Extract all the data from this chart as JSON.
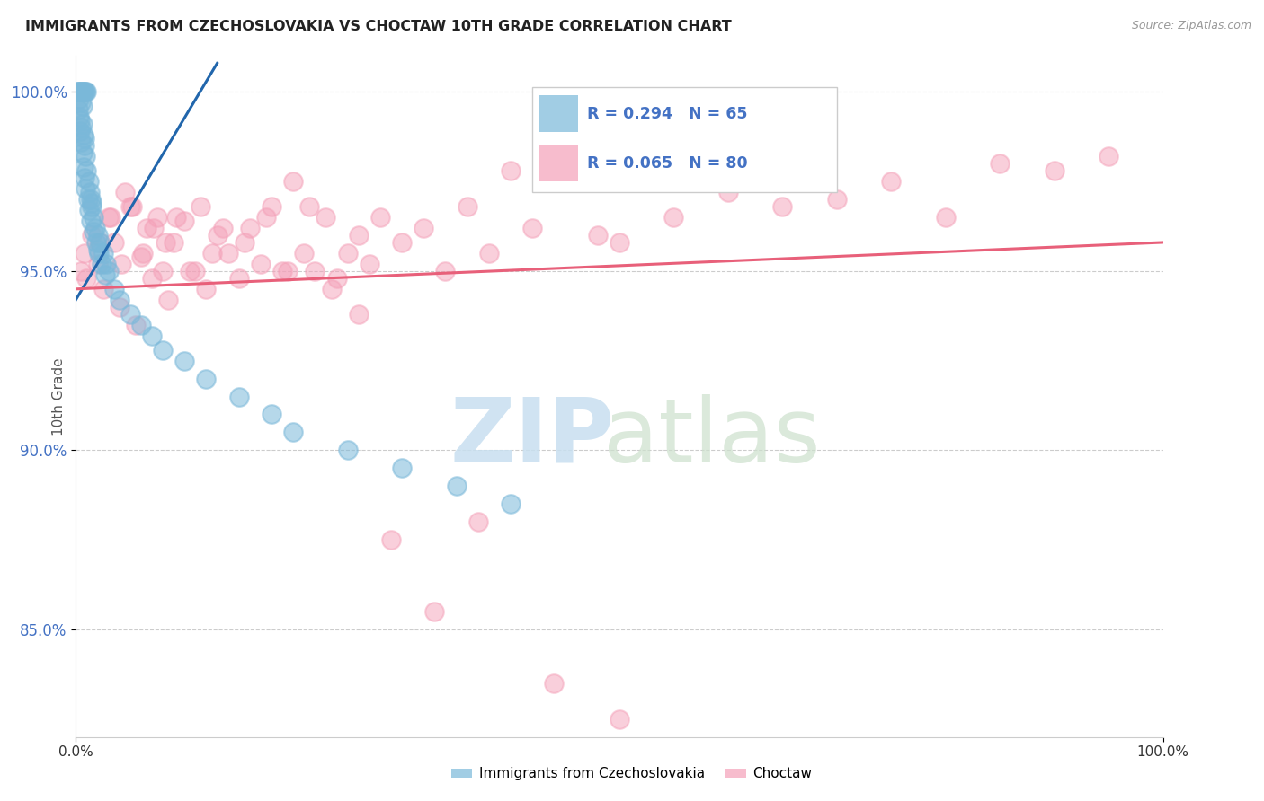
{
  "title": "IMMIGRANTS FROM CZECHOSLOVAKIA VS CHOCTAW 10TH GRADE CORRELATION CHART",
  "source": "Source: ZipAtlas.com",
  "blue_R": 0.294,
  "blue_N": 65,
  "pink_R": 0.065,
  "pink_N": 80,
  "blue_label": "Immigrants from Czechoslovakia",
  "pink_label": "Choctaw",
  "blue_color": "#7ab8d9",
  "pink_color": "#f4a0b8",
  "blue_line_color": "#2166ac",
  "pink_line_color": "#e8607a",
  "ylabel": "10th Grade",
  "xmin": 0,
  "xmax": 100,
  "ymin": 82,
  "ymax": 101,
  "yticks": [
    85.0,
    90.0,
    95.0,
    100.0
  ],
  "ytick_labels": [
    "85.0%",
    "90.0%",
    "95.0%",
    "100.0%"
  ],
  "watermark_zip": "ZIP",
  "watermark_atlas": "atlas",
  "blue_scatter_x": [
    0.1,
    0.2,
    0.3,
    0.4,
    0.5,
    0.6,
    0.7,
    0.8,
    0.9,
    1.0,
    0.2,
    0.3,
    0.4,
    0.5,
    0.6,
    0.7,
    0.8,
    0.9,
    1.0,
    1.2,
    1.3,
    1.4,
    1.5,
    1.6,
    1.8,
    2.0,
    2.2,
    2.5,
    2.8,
    3.0,
    0.3,
    0.4,
    0.5,
    0.6,
    0.7,
    0.8,
    0.9,
    1.1,
    1.2,
    1.4,
    1.6,
    1.9,
    2.1,
    2.4,
    2.7,
    3.5,
    4.0,
    5.0,
    6.0,
    7.0,
    8.0,
    10.0,
    12.0,
    15.0,
    18.0,
    20.0,
    25.0,
    30.0,
    35.0,
    40.0,
    0.5,
    0.6,
    0.8,
    1.5,
    2.0
  ],
  "blue_scatter_y": [
    100.0,
    100.0,
    100.0,
    100.0,
    100.0,
    100.0,
    100.0,
    100.0,
    100.0,
    100.0,
    99.5,
    99.8,
    99.2,
    99.0,
    99.6,
    98.8,
    98.5,
    98.2,
    97.8,
    97.5,
    97.2,
    97.0,
    96.8,
    96.5,
    96.2,
    96.0,
    95.8,
    95.5,
    95.2,
    95.0,
    99.3,
    98.9,
    98.6,
    98.3,
    97.9,
    97.6,
    97.3,
    97.0,
    96.7,
    96.4,
    96.1,
    95.8,
    95.5,
    95.2,
    94.9,
    94.5,
    94.2,
    93.8,
    93.5,
    93.2,
    92.8,
    92.5,
    92.0,
    91.5,
    91.0,
    90.5,
    90.0,
    89.5,
    89.0,
    88.5,
    99.7,
    99.1,
    98.7,
    96.9,
    95.6
  ],
  "pink_scatter_x": [
    0.5,
    0.8,
    1.0,
    1.5,
    2.0,
    2.5,
    3.0,
    3.5,
    4.0,
    4.5,
    5.0,
    5.5,
    6.0,
    6.5,
    7.0,
    7.5,
    8.0,
    8.5,
    9.0,
    10.0,
    11.0,
    12.0,
    13.0,
    14.0,
    15.0,
    16.0,
    17.0,
    18.0,
    19.0,
    20.0,
    21.0,
    22.0,
    23.0,
    24.0,
    25.0,
    26.0,
    27.0,
    28.0,
    30.0,
    32.0,
    34.0,
    36.0,
    38.0,
    40.0,
    42.0,
    45.0,
    48.0,
    50.0,
    55.0,
    60.0,
    65.0,
    70.0,
    75.0,
    80.0,
    85.0,
    90.0,
    95.0,
    2.2,
    3.2,
    4.2,
    5.2,
    6.2,
    7.2,
    8.2,
    9.2,
    10.5,
    11.5,
    12.5,
    13.5,
    15.5,
    17.5,
    19.5,
    21.5,
    23.5,
    26.0,
    29.0,
    33.0,
    37.0,
    44.0,
    50.0
  ],
  "pink_scatter_y": [
    95.0,
    95.5,
    94.8,
    96.0,
    95.2,
    94.5,
    96.5,
    95.8,
    94.0,
    97.2,
    96.8,
    93.5,
    95.4,
    96.2,
    94.8,
    96.5,
    95.0,
    94.2,
    95.8,
    96.4,
    95.0,
    94.5,
    96.0,
    95.5,
    94.8,
    96.2,
    95.2,
    96.8,
    95.0,
    97.5,
    95.5,
    95.0,
    96.5,
    94.8,
    95.5,
    96.0,
    95.2,
    96.5,
    95.8,
    96.2,
    95.0,
    96.8,
    95.5,
    97.8,
    96.2,
    97.5,
    96.0,
    95.8,
    96.5,
    97.2,
    96.8,
    97.0,
    97.5,
    96.5,
    98.0,
    97.8,
    98.2,
    95.8,
    96.5,
    95.2,
    96.8,
    95.5,
    96.2,
    95.8,
    96.5,
    95.0,
    96.8,
    95.5,
    96.2,
    95.8,
    96.5,
    95.0,
    96.8,
    94.5,
    93.8,
    87.5,
    85.5,
    88.0,
    83.5,
    82.5
  ],
  "blue_line_x0": 0,
  "blue_line_y0": 94.2,
  "blue_line_x1": 13,
  "blue_line_y1": 100.8,
  "pink_line_x0": 0,
  "pink_line_y0": 94.5,
  "pink_line_x1": 100,
  "pink_line_y1": 95.8
}
